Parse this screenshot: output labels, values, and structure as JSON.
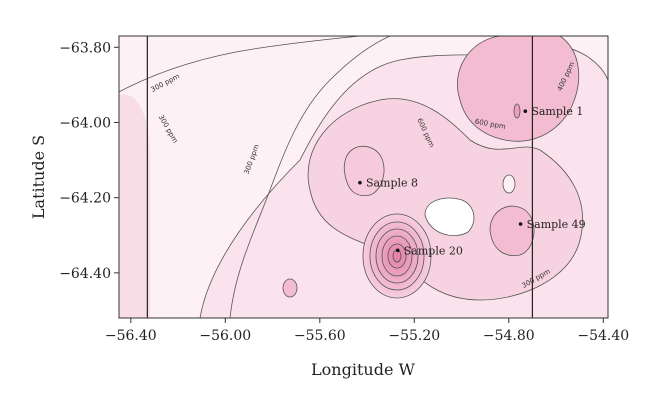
{
  "chart_data": {
    "type": "contour",
    "title": "",
    "xlabel": "Longitude W",
    "ylabel": "Latitude S",
    "xlim": [
      -56.45,
      -54.38
    ],
    "ylim": [
      -64.52,
      -63.77
    ],
    "x_ticks": [
      -56.4,
      -56.0,
      -55.6,
      -55.2,
      -54.8,
      -54.4
    ],
    "x_tick_labels": [
      "−56.40",
      "−56.00",
      "−55.60",
      "−55.20",
      "−54.80",
      "−54.40"
    ],
    "y_ticks": [
      -63.8,
      -64.0,
      -64.2,
      -64.4
    ],
    "y_tick_labels": [
      "−63.80",
      "−64.00",
      "−64.20",
      "−64.40"
    ],
    "grid": false,
    "reference_lines_x": [
      -56.33,
      -54.7
    ],
    "samples": [
      {
        "label": "Sample 1",
        "x": -54.73,
        "y": -63.97
      },
      {
        "label": "Sample 8",
        "x": -55.43,
        "y": -64.16
      },
      {
        "label": "Sample 20",
        "x": -55.27,
        "y": -64.34
      },
      {
        "label": "Sample 49",
        "x": -54.75,
        "y": -64.27
      }
    ],
    "contour_labels": [
      {
        "text": "300 ppm",
        "x": -56.25,
        "y": -63.9
      },
      {
        "text": "300 ppm",
        "x": -56.25,
        "y": -64.02
      },
      {
        "text": "300 ppm",
        "x": -55.88,
        "y": -64.1
      },
      {
        "text": "600 ppm",
        "x": -55.16,
        "y": -64.03
      },
      {
        "text": "600 ppm",
        "x": -54.88,
        "y": -64.01
      },
      {
        "text": "400 ppm",
        "x": -54.55,
        "y": -63.88
      },
      {
        "text": "300 ppm",
        "x": -54.68,
        "y": -64.42
      }
    ],
    "colors": {
      "low": "#fdf1f5",
      "mid": "#f9d6e3",
      "high": "#f3b9cf",
      "peak": "#e68fb0"
    }
  }
}
